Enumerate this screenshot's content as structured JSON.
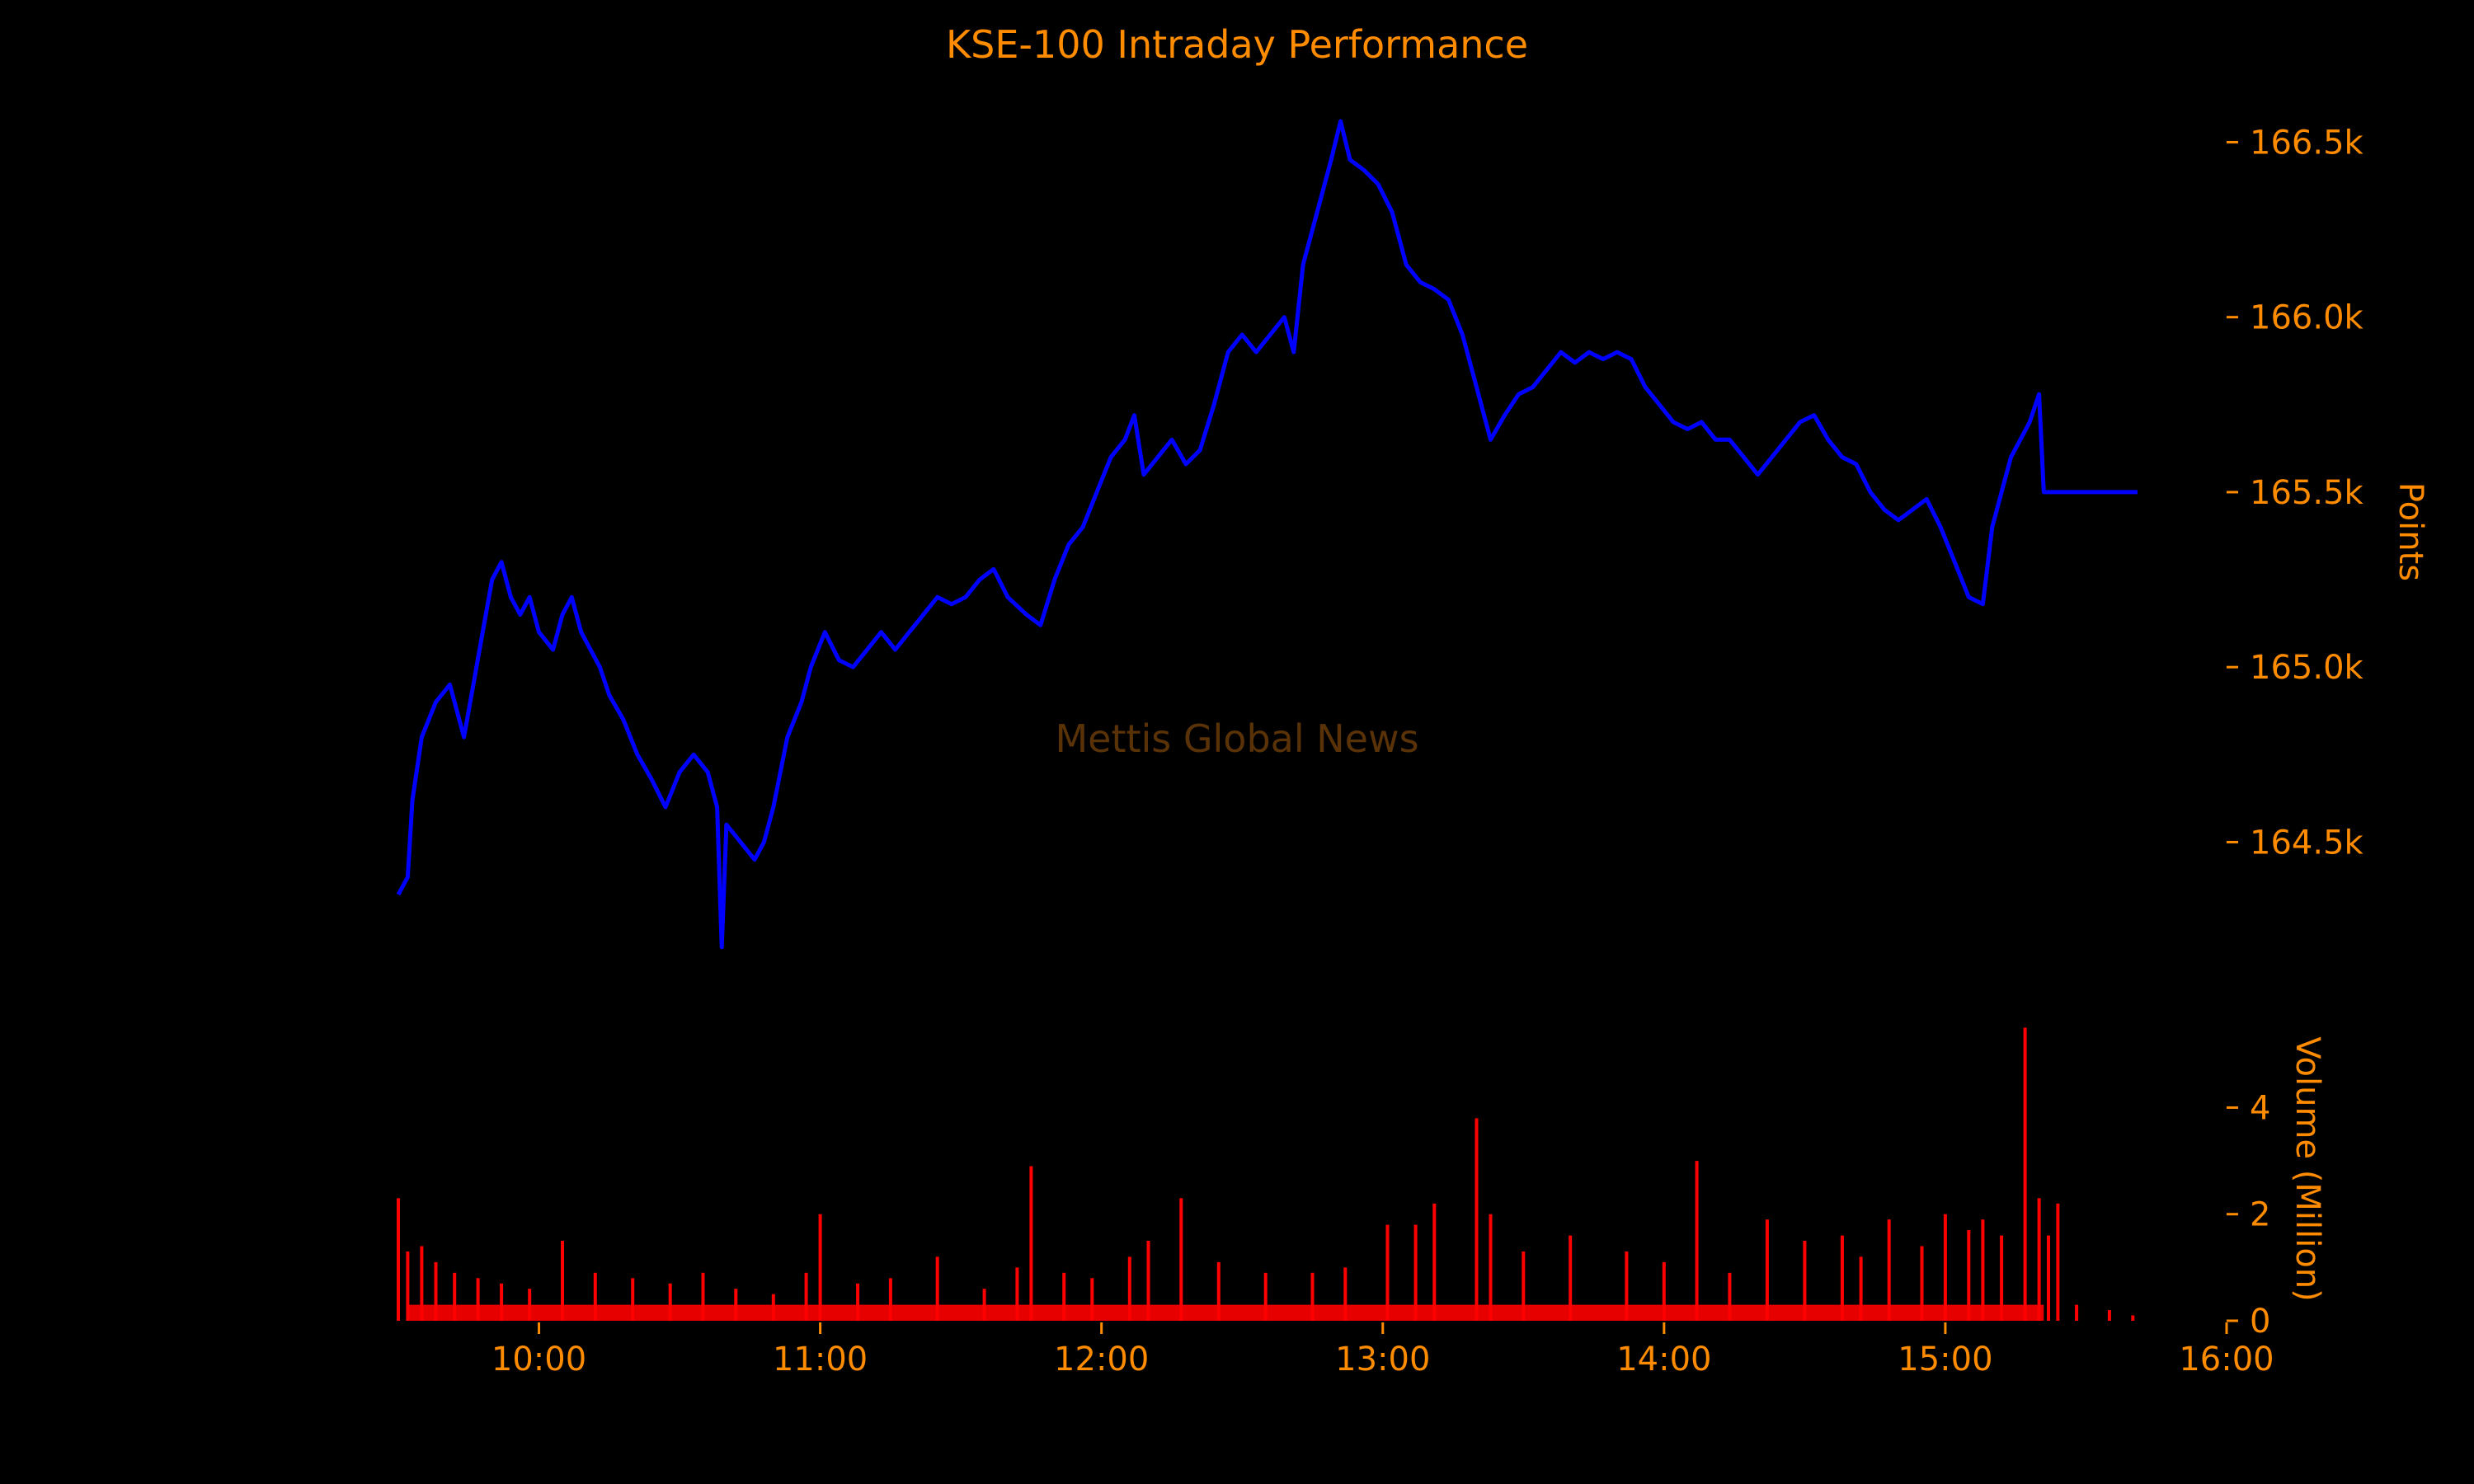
{
  "chart_data": [
    {
      "type": "line",
      "title": "KSE-100 Intraday Performance",
      "watermark": "Mettis Global News",
      "ylabel": "Points",
      "y_axis_position": "right",
      "x_range": [
        "09:30",
        "16:00"
      ],
      "ylim": [
        164150,
        166600
      ],
      "y_ticks": [
        164500,
        165000,
        165500,
        166000,
        166500
      ],
      "y_tick_labels": [
        "164.5k",
        "165.0k",
        "165.5k",
        "166.0k",
        "166.5k"
      ],
      "grid": false,
      "colors": {
        "line": "#0000FF",
        "text": "#FF8C00",
        "background": "#000000"
      },
      "series": [
        {
          "points": [
            [
              "09:30",
              164350
            ],
            [
              "09:32",
              164400
            ],
            [
              "09:33",
              164620
            ],
            [
              "09:35",
              164800
            ],
            [
              "09:38",
              164900
            ],
            [
              "09:41",
              164950
            ],
            [
              "09:44",
              164800
            ],
            [
              "09:46",
              164950
            ],
            [
              "09:48",
              165100
            ],
            [
              "09:50",
              165250
            ],
            [
              "09:52",
              165300
            ],
            [
              "09:54",
              165200
            ],
            [
              "09:56",
              165150
            ],
            [
              "09:58",
              165200
            ],
            [
              "10:00",
              165100
            ],
            [
              "10:03",
              165050
            ],
            [
              "10:05",
              165150
            ],
            [
              "10:07",
              165200
            ],
            [
              "10:09",
              165100
            ],
            [
              "10:11",
              165050
            ],
            [
              "10:13",
              165000
            ],
            [
              "10:15",
              164920
            ],
            [
              "10:18",
              164850
            ],
            [
              "10:21",
              164750
            ],
            [
              "10:24",
              164680
            ],
            [
              "10:27",
              164600
            ],
            [
              "10:30",
              164700
            ],
            [
              "10:33",
              164750
            ],
            [
              "10:36",
              164700
            ],
            [
              "10:38",
              164600
            ],
            [
              "10:39",
              164200
            ],
            [
              "10:40",
              164550
            ],
            [
              "10:43",
              164500
            ],
            [
              "10:46",
              164450
            ],
            [
              "10:48",
              164500
            ],
            [
              "10:50",
              164600
            ],
            [
              "10:53",
              164800
            ],
            [
              "10:56",
              164900
            ],
            [
              "10:58",
              165000
            ],
            [
              "11:01",
              165100
            ],
            [
              "11:04",
              165020
            ],
            [
              "11:07",
              165000
            ],
            [
              "11:10",
              165050
            ],
            [
              "11:13",
              165100
            ],
            [
              "11:16",
              165050
            ],
            [
              "11:19",
              165100
            ],
            [
              "11:22",
              165150
            ],
            [
              "11:25",
              165200
            ],
            [
              "11:28",
              165180
            ],
            [
              "11:31",
              165200
            ],
            [
              "11:34",
              165250
            ],
            [
              "11:37",
              165280
            ],
            [
              "11:40",
              165200
            ],
            [
              "11:44",
              165150
            ],
            [
              "11:47",
              165120
            ],
            [
              "11:50",
              165250
            ],
            [
              "11:53",
              165350
            ],
            [
              "11:56",
              165400
            ],
            [
              "11:59",
              165500
            ],
            [
              "12:02",
              165600
            ],
            [
              "12:05",
              165650
            ],
            [
              "12:07",
              165720
            ],
            [
              "12:09",
              165550
            ],
            [
              "12:12",
              165600
            ],
            [
              "12:15",
              165650
            ],
            [
              "12:18",
              165580
            ],
            [
              "12:21",
              165620
            ],
            [
              "12:24",
              165750
            ],
            [
              "12:27",
              165900
            ],
            [
              "12:30",
              165950
            ],
            [
              "12:33",
              165900
            ],
            [
              "12:36",
              165950
            ],
            [
              "12:39",
              166000
            ],
            [
              "12:41",
              165900
            ],
            [
              "12:43",
              166150
            ],
            [
              "12:46",
              166300
            ],
            [
              "12:49",
              166450
            ],
            [
              "12:51",
              166560
            ],
            [
              "12:53",
              166450
            ],
            [
              "12:56",
              166420
            ],
            [
              "12:59",
              166380
            ],
            [
              "13:02",
              166300
            ],
            [
              "13:05",
              166150
            ],
            [
              "13:08",
              166100
            ],
            [
              "13:11",
              166080
            ],
            [
              "13:14",
              166050
            ],
            [
              "13:17",
              165950
            ],
            [
              "13:20",
              165800
            ],
            [
              "13:23",
              165650
            ],
            [
              "13:26",
              165720
            ],
            [
              "13:29",
              165780
            ],
            [
              "13:32",
              165800
            ],
            [
              "13:35",
              165850
            ],
            [
              "13:38",
              165900
            ],
            [
              "13:41",
              165870
            ],
            [
              "13:44",
              165900
            ],
            [
              "13:47",
              165880
            ],
            [
              "13:50",
              165900
            ],
            [
              "13:53",
              165880
            ],
            [
              "13:56",
              165800
            ],
            [
              "13:59",
              165750
            ],
            [
              "14:02",
              165700
            ],
            [
              "14:05",
              165680
            ],
            [
              "14:08",
              165700
            ],
            [
              "14:11",
              165650
            ],
            [
              "14:14",
              165650
            ],
            [
              "14:17",
              165600
            ],
            [
              "14:20",
              165550
            ],
            [
              "14:23",
              165600
            ],
            [
              "14:26",
              165650
            ],
            [
              "14:29",
              165700
            ],
            [
              "14:32",
              165720
            ],
            [
              "14:35",
              165650
            ],
            [
              "14:38",
              165600
            ],
            [
              "14:41",
              165580
            ],
            [
              "14:44",
              165500
            ],
            [
              "14:47",
              165450
            ],
            [
              "14:50",
              165420
            ],
            [
              "14:53",
              165450
            ],
            [
              "14:56",
              165480
            ],
            [
              "14:59",
              165400
            ],
            [
              "15:02",
              165300
            ],
            [
              "15:05",
              165200
            ],
            [
              "15:08",
              165180
            ],
            [
              "15:10",
              165400
            ],
            [
              "15:12",
              165500
            ],
            [
              "15:14",
              165600
            ],
            [
              "15:16",
              165650
            ],
            [
              "15:18",
              165700
            ],
            [
              "15:20",
              165780
            ],
            [
              "15:21",
              165500
            ],
            [
              "15:41",
              165500
            ]
          ]
        }
      ]
    },
    {
      "type": "bar",
      "ylabel": "Volume (Million)",
      "y_axis_position": "right",
      "ylim": [
        0,
        5.6
      ],
      "y_ticks": [
        0,
        2,
        4
      ],
      "y_tick_labels": [
        "0",
        "2",
        "4"
      ],
      "x_range": [
        "09:30",
        "16:00"
      ],
      "x_ticks": [
        "10:00",
        "11:00",
        "12:00",
        "13:00",
        "14:00",
        "15:00",
        "16:00"
      ],
      "grid": false,
      "colors": {
        "bar": "#FF0000"
      },
      "values_note": "per-minute volume in millions",
      "series": [
        {
          "points": [
            [
              "09:30",
              2.3
            ],
            [
              "09:32",
              1.3
            ],
            [
              "09:35",
              1.4
            ],
            [
              "09:38",
              1.1
            ],
            [
              "09:42",
              0.9
            ],
            [
              "09:47",
              0.8
            ],
            [
              "09:52",
              0.7
            ],
            [
              "09:58",
              0.6
            ],
            [
              "10:05",
              1.5
            ],
            [
              "10:12",
              0.9
            ],
            [
              "10:20",
              0.8
            ],
            [
              "10:28",
              0.7
            ],
            [
              "10:35",
              0.9
            ],
            [
              "10:42",
              0.6
            ],
            [
              "10:50",
              0.5
            ],
            [
              "10:57",
              0.9
            ],
            [
              "11:00",
              2.0
            ],
            [
              "11:08",
              0.7
            ],
            [
              "11:15",
              0.8
            ],
            [
              "11:25",
              1.2
            ],
            [
              "11:35",
              0.6
            ],
            [
              "11:42",
              1.0
            ],
            [
              "11:45",
              2.9
            ],
            [
              "11:52",
              0.9
            ],
            [
              "11:58",
              0.8
            ],
            [
              "12:06",
              1.2
            ],
            [
              "12:10",
              1.5
            ],
            [
              "12:17",
              2.3
            ],
            [
              "12:25",
              1.1
            ],
            [
              "12:35",
              0.9
            ],
            [
              "12:45",
              0.9
            ],
            [
              "12:52",
              1.0
            ],
            [
              "13:01",
              1.8
            ],
            [
              "13:07",
              1.8
            ],
            [
              "13:11",
              2.2
            ],
            [
              "13:20",
              3.8
            ],
            [
              "13:23",
              2.0
            ],
            [
              "13:30",
              1.3
            ],
            [
              "13:40",
              1.6
            ],
            [
              "13:52",
              1.3
            ],
            [
              "14:00",
              1.1
            ],
            [
              "14:07",
              3.0
            ],
            [
              "14:14",
              0.9
            ],
            [
              "14:22",
              1.9
            ],
            [
              "14:30",
              1.5
            ],
            [
              "14:38",
              1.6
            ],
            [
              "14:42",
              1.2
            ],
            [
              "14:48",
              1.9
            ],
            [
              "14:55",
              1.4
            ],
            [
              "15:00",
              2.0
            ],
            [
              "15:05",
              1.7
            ],
            [
              "15:08",
              1.9
            ],
            [
              "15:12",
              1.6
            ],
            [
              "15:17",
              5.5
            ],
            [
              "15:20",
              2.3
            ],
            [
              "15:22",
              1.6
            ],
            [
              "15:24",
              2.2
            ],
            [
              "15:28",
              0.3
            ],
            [
              "15:35",
              0.2
            ],
            [
              "15:40",
              0.1
            ]
          ]
        }
      ]
    }
  ]
}
